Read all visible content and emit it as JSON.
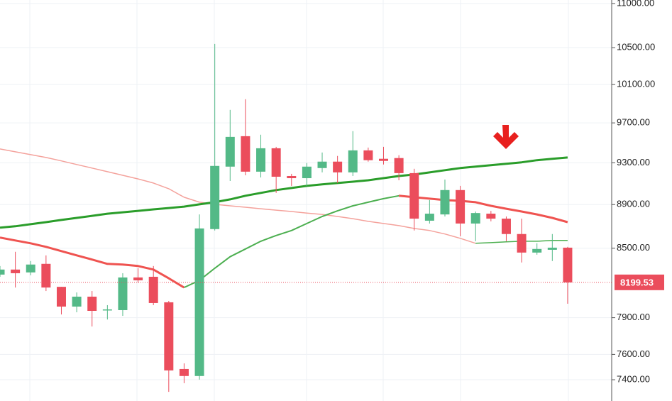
{
  "chart_data": {
    "type": "candlestick",
    "log_scale": true,
    "grid": true,
    "up_color": "#53b987",
    "down_color": "#eb4d5c",
    "ylim": [
      7236,
      11041
    ],
    "yticks": [
      {
        "value": 11000,
        "label": "11000.00"
      },
      {
        "value": 10500,
        "label": "10500.00"
      },
      {
        "value": 10100,
        "label": "10100.00"
      },
      {
        "value": 9700,
        "label": "9700.00"
      },
      {
        "value": 9300,
        "label": "9300.00"
      },
      {
        "value": 8900,
        "label": "8900.00"
      },
      {
        "value": 8500,
        "label": "8500.00"
      },
      {
        "value": 7900,
        "label": "7900.00"
      },
      {
        "value": 7600,
        "label": "7600.00"
      },
      {
        "value": 7400,
        "label": "7400.00"
      }
    ],
    "last_price": 8199.53,
    "last_price_color": "#eb4d5c",
    "open": [
      8267,
      8311,
      8286,
      8361,
      8161,
      7993,
      8077,
      7963,
      7963,
      8242,
      8248,
      8029,
      7484,
      7429,
      8673,
      9263,
      9565,
      9214,
      9444,
      9172,
      9151,
      9249,
      9312,
      9207,
      9423,
      9340,
      9347,
      9200,
      8750,
      8808,
      9037,
      8724,
      8815,
      8769,
      8628,
      8461,
      8486,
      8505
    ],
    "high": [
      8342,
      8468,
      8386,
      8436,
      8161,
      8113,
      8125,
      8005,
      8279,
      8323,
      8342,
      8041,
      7529,
      8808,
      10542,
      9834,
      9945,
      9580,
      9458,
      9193,
      9298,
      9402,
      9368,
      9616,
      9451,
      9458,
      9375,
      9242,
      8942,
      9138,
      9077,
      8835,
      8841,
      8789,
      8769,
      8544,
      8628,
      8512
    ],
    "low": [
      8248,
      8155,
      8261,
      8125,
      7927,
      7945,
      7827,
      7885,
      7915,
      8198,
      8005,
      7306,
      7373,
      7401,
      8660,
      9124,
      9179,
      9158,
      9010,
      9077,
      9077,
      9207,
      9104,
      9172,
      9312,
      9284,
      9131,
      8660,
      8724,
      8789,
      8608,
      8563,
      8744,
      8563,
      8373,
      8442,
      8386,
      8017
    ],
    "close": [
      8311,
      8279,
      8355,
      8155,
      7993,
      8077,
      7957,
      7969,
      8242,
      8217,
      8023,
      7473,
      7429,
      8679,
      9270,
      9558,
      9214,
      9444,
      9165,
      9151,
      9263,
      9312,
      9207,
      9423,
      9326,
      9319,
      9200,
      8769,
      8815,
      9037,
      8724,
      8821,
      8769,
      8628,
      8461,
      8493,
      8505,
      8199.53
    ],
    "series": [
      {
        "color": "#f4a29c",
        "width": 1.5,
        "values": [
          9437,
          9409,
          9381,
          9353,
          9319,
          9284,
          9249,
          9214,
          9179,
          9144,
          9104,
          9050,
          8969,
          8922,
          8902,
          8888,
          8875,
          8861,
          8848,
          8835,
          8821,
          8808,
          8789,
          8769,
          8744,
          8724,
          8705,
          8679,
          8660,
          8628,
          8589,
          8544,
          null,
          null,
          null,
          null,
          null,
          null
        ]
      },
      {
        "color": "#4caf50",
        "width": 1.5,
        "values": [
          null,
          null,
          null,
          null,
          null,
          null,
          null,
          null,
          null,
          null,
          null,
          null,
          null,
          null,
          null,
          null,
          null,
          null,
          null,
          null,
          null,
          null,
          null,
          null,
          null,
          null,
          null,
          null,
          null,
          null,
          null,
          8544,
          8550,
          8557,
          8563,
          8563,
          8570,
          8570
        ]
      },
      {
        "color": "#2a9d2a",
        "width": 3,
        "values": [
          8686,
          8699,
          8718,
          8737,
          8757,
          8776,
          8795,
          8815,
          8828,
          8841,
          8855,
          8868,
          8881,
          8902,
          8922,
          8949,
          8983,
          9010,
          9037,
          9057,
          9077,
          9091,
          9104,
          9117,
          9131,
          9151,
          9172,
          9186,
          9207,
          9228,
          9249,
          9263,
          9277,
          9291,
          9305,
          9326,
          9340,
          9353
        ]
      },
      {
        "color": "#ef5350",
        "width": 3,
        "values": [
          8596,
          8570,
          8544,
          8512,
          8474,
          8436,
          8399,
          8361,
          8355,
          8342,
          8311,
          8235,
          8155,
          null,
          null,
          null,
          null,
          null,
          null,
          null,
          null,
          null,
          null,
          null,
          null,
          null,
          8983,
          8969,
          8956,
          8942,
          8935,
          8922,
          8888,
          8861,
          8835,
          8808,
          8776,
          8737
        ]
      },
      {
        "color": "#4caf50",
        "width": 2,
        "values": [
          null,
          null,
          null,
          null,
          null,
          null,
          null,
          null,
          null,
          null,
          null,
          null,
          8155,
          8217,
          8323,
          8424,
          8493,
          8563,
          8615,
          8660,
          8724,
          8789,
          8841,
          8888,
          8922,
          8956,
          8983,
          null,
          null,
          null,
          null,
          null,
          null,
          null,
          null,
          null,
          null,
          null
        ]
      }
    ]
  }
}
